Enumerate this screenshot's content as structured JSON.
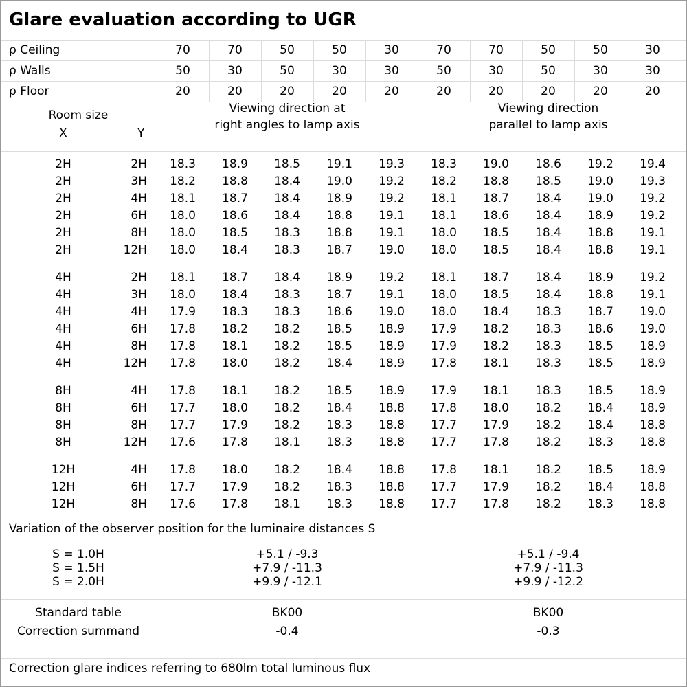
{
  "title": "Glare evaluation according to UGR",
  "reflectance_rows": [
    {
      "label": "ρ Ceiling",
      "values": [
        "70",
        "70",
        "50",
        "50",
        "30",
        "70",
        "70",
        "50",
        "50",
        "30"
      ]
    },
    {
      "label": "ρ Walls",
      "values": [
        "50",
        "30",
        "50",
        "30",
        "30",
        "50",
        "30",
        "50",
        "30",
        "30"
      ]
    },
    {
      "label": "ρ Floor",
      "values": [
        "20",
        "20",
        "20",
        "20",
        "20",
        "20",
        "20",
        "20",
        "20",
        "20"
      ]
    }
  ],
  "room_size": {
    "label": "Room size",
    "x_label": "X",
    "y_label": "Y"
  },
  "viewing_right": [
    "Viewing direction at",
    "right angles to lamp axis"
  ],
  "viewing_parallel": [
    "Viewing direction",
    "parallel to lamp axis"
  ],
  "groups": [
    {
      "rows": [
        {
          "x": "2H",
          "y": "2H",
          "v": [
            "18.3",
            "18.9",
            "18.5",
            "19.1",
            "19.3",
            "18.3",
            "19.0",
            "18.6",
            "19.2",
            "19.4"
          ]
        },
        {
          "x": "2H",
          "y": "3H",
          "v": [
            "18.2",
            "18.8",
            "18.4",
            "19.0",
            "19.2",
            "18.2",
            "18.8",
            "18.5",
            "19.0",
            "19.3"
          ]
        },
        {
          "x": "2H",
          "y": "4H",
          "v": [
            "18.1",
            "18.7",
            "18.4",
            "18.9",
            "19.2",
            "18.1",
            "18.7",
            "18.4",
            "19.0",
            "19.2"
          ]
        },
        {
          "x": "2H",
          "y": "6H",
          "v": [
            "18.0",
            "18.6",
            "18.4",
            "18.8",
            "19.1",
            "18.1",
            "18.6",
            "18.4",
            "18.9",
            "19.2"
          ]
        },
        {
          "x": "2H",
          "y": "8H",
          "v": [
            "18.0",
            "18.5",
            "18.3",
            "18.8",
            "19.1",
            "18.0",
            "18.5",
            "18.4",
            "18.8",
            "19.1"
          ]
        },
        {
          "x": "2H",
          "y": "12H",
          "v": [
            "18.0",
            "18.4",
            "18.3",
            "18.7",
            "19.0",
            "18.0",
            "18.5",
            "18.4",
            "18.8",
            "19.1"
          ]
        }
      ]
    },
    {
      "rows": [
        {
          "x": "4H",
          "y": "2H",
          "v": [
            "18.1",
            "18.7",
            "18.4",
            "18.9",
            "19.2",
            "18.1",
            "18.7",
            "18.4",
            "18.9",
            "19.2"
          ]
        },
        {
          "x": "4H",
          "y": "3H",
          "v": [
            "18.0",
            "18.4",
            "18.3",
            "18.7",
            "19.1",
            "18.0",
            "18.5",
            "18.4",
            "18.8",
            "19.1"
          ]
        },
        {
          "x": "4H",
          "y": "4H",
          "v": [
            "17.9",
            "18.3",
            "18.3",
            "18.6",
            "19.0",
            "18.0",
            "18.4",
            "18.3",
            "18.7",
            "19.0"
          ]
        },
        {
          "x": "4H",
          "y": "6H",
          "v": [
            "17.8",
            "18.2",
            "18.2",
            "18.5",
            "18.9",
            "17.9",
            "18.2",
            "18.3",
            "18.6",
            "19.0"
          ]
        },
        {
          "x": "4H",
          "y": "8H",
          "v": [
            "17.8",
            "18.1",
            "18.2",
            "18.5",
            "18.9",
            "17.9",
            "18.2",
            "18.3",
            "18.5",
            "18.9"
          ]
        },
        {
          "x": "4H",
          "y": "12H",
          "v": [
            "17.8",
            "18.0",
            "18.2",
            "18.4",
            "18.9",
            "17.8",
            "18.1",
            "18.3",
            "18.5",
            "18.9"
          ]
        }
      ]
    },
    {
      "rows": [
        {
          "x": "8H",
          "y": "4H",
          "v": [
            "17.8",
            "18.1",
            "18.2",
            "18.5",
            "18.9",
            "17.9",
            "18.1",
            "18.3",
            "18.5",
            "18.9"
          ]
        },
        {
          "x": "8H",
          "y": "6H",
          "v": [
            "17.7",
            "18.0",
            "18.2",
            "18.4",
            "18.8",
            "17.8",
            "18.0",
            "18.2",
            "18.4",
            "18.9"
          ]
        },
        {
          "x": "8H",
          "y": "8H",
          "v": [
            "17.7",
            "17.9",
            "18.2",
            "18.3",
            "18.8",
            "17.7",
            "17.9",
            "18.2",
            "18.4",
            "18.8"
          ]
        },
        {
          "x": "8H",
          "y": "12H",
          "v": [
            "17.6",
            "17.8",
            "18.1",
            "18.3",
            "18.8",
            "17.7",
            "17.8",
            "18.2",
            "18.3",
            "18.8"
          ]
        }
      ]
    },
    {
      "rows": [
        {
          "x": "12H",
          "y": "4H",
          "v": [
            "17.8",
            "18.0",
            "18.2",
            "18.4",
            "18.8",
            "17.8",
            "18.1",
            "18.2",
            "18.5",
            "18.9"
          ]
        },
        {
          "x": "12H",
          "y": "6H",
          "v": [
            "17.7",
            "17.9",
            "18.2",
            "18.3",
            "18.8",
            "17.7",
            "17.9",
            "18.2",
            "18.4",
            "18.8"
          ]
        },
        {
          "x": "12H",
          "y": "8H",
          "v": [
            "17.6",
            "17.8",
            "18.1",
            "18.3",
            "18.8",
            "17.7",
            "17.8",
            "18.2",
            "18.3",
            "18.8"
          ]
        }
      ]
    }
  ],
  "variation_label": "Variation of the observer position for the luminaire distances S",
  "variation": [
    {
      "s": "S = 1.0H",
      "right": "+5.1 / -9.3",
      "parallel": "+5.1 / -9.4"
    },
    {
      "s": "S = 1.5H",
      "right": "+7.9 / -11.3",
      "parallel": "+7.9 / -11.3"
    },
    {
      "s": "S = 2.0H",
      "right": "+9.9 / -12.1",
      "parallel": "+9.9 / -12.2"
    }
  ],
  "standard_table": {
    "label": "Standard table",
    "right": "BK00",
    "parallel": "BK00"
  },
  "correction_summand": {
    "label": "Correction summand",
    "right": "-0.4",
    "parallel": "-0.3"
  },
  "footer": "Correction glare indices referring to 680lm total luminous flux"
}
